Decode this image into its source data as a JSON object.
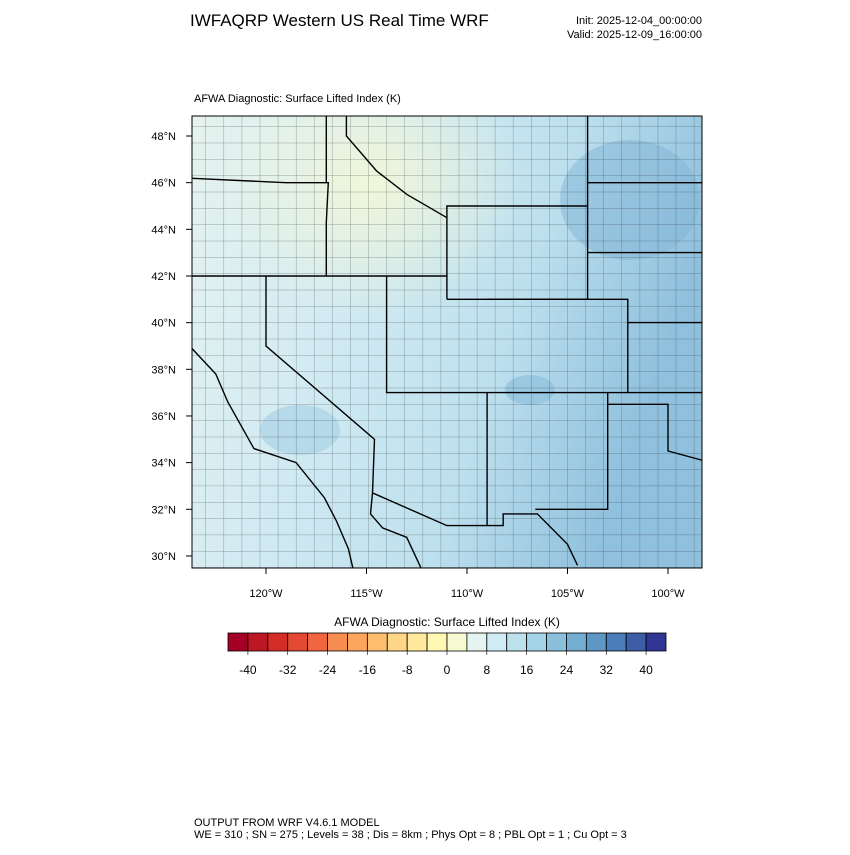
{
  "header": {
    "title": "IWFAQRP Western US Real Time WRF",
    "init": "Init: 2025-12-04_00:00:00",
    "valid": "Valid: 2025-12-09_16:00:00"
  },
  "map": {
    "title": "AFWA Diagnostic: Surface Lifted Index   (K)",
    "lat_ticks": [
      {
        "value": 48,
        "label": "48°N"
      },
      {
        "value": 46,
        "label": "46°N"
      },
      {
        "value": 44,
        "label": "44°N"
      },
      {
        "value": 42,
        "label": "42°N"
      },
      {
        "value": 40,
        "label": "40°N"
      },
      {
        "value": 38,
        "label": "38°N"
      },
      {
        "value": 36,
        "label": "36°N"
      },
      {
        "value": 34,
        "label": "34°N"
      },
      {
        "value": 32,
        "label": "32°N"
      },
      {
        "value": 30,
        "label": "30°N"
      }
    ],
    "lon_ticks": [
      {
        "value": -120,
        "label": "120°W"
      },
      {
        "value": -115,
        "label": "115°W"
      },
      {
        "value": -110,
        "label": "110°W"
      },
      {
        "value": -105,
        "label": "105°W"
      },
      {
        "value": -100,
        "label": "100°W"
      }
    ]
  },
  "colorbar": {
    "title": "AFWA Diagnostic: Surface Lifted Index  (K)",
    "lim": [
      -44,
      44
    ],
    "ticks": [
      -40,
      -32,
      -24,
      -16,
      -8,
      0,
      8,
      16,
      24,
      32,
      40
    ],
    "colors": [
      "#a50026",
      "#bd1726",
      "#d42d27",
      "#e34933",
      "#f16640",
      "#f88d52",
      "#fca55d",
      "#fdbf6f",
      "#fed687",
      "#fee99d",
      "#fff8b4",
      "#f6fbd1",
      "#e4f4f1",
      "#d1ecf4",
      "#bbe1ed",
      "#a3d3e6",
      "#8ac0dc",
      "#73add2",
      "#5e96c5",
      "#4a7cb7",
      "#3d5ea7",
      "#313695"
    ]
  },
  "footer": {
    "line1": "OUTPUT FROM WRF V4.6.1 MODEL",
    "line2": "WE = 310 ; SN = 275 ; Levels = 38 ; Dis = 8km ; Phys Opt = 8 ; PBL Opt = 1 ; Cu Opt = 3"
  }
}
